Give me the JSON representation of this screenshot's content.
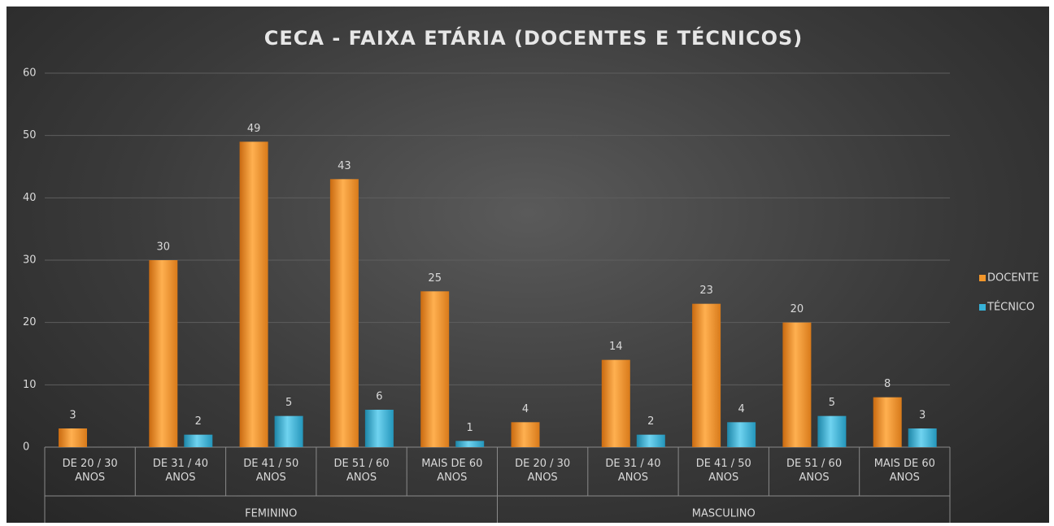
{
  "chart_data": {
    "type": "bar",
    "title": "CECA - FAIXA ETÁRIA (DOCENTES E TÉCNICOS)",
    "categories": [
      "DE 20 / 30 ANOS",
      "DE 31 / 40 ANOS",
      "DE 41 / 50 ANOS",
      "DE 51 / 60 ANOS",
      "MAIS DE 60 ANOS",
      "DE 20 / 30 ANOS",
      "DE 31 / 40 ANOS",
      "DE 41 / 50 ANOS",
      "DE 51 / 60 ANOS",
      "MAIS DE 60 ANOS"
    ],
    "groups": [
      "FEMININO",
      "MASCULINO"
    ],
    "series": [
      {
        "name": "DOCENTE",
        "color": "#f2962a",
        "values": [
          3,
          30,
          49,
          43,
          25,
          4,
          14,
          23,
          20,
          8
        ]
      },
      {
        "name": "TÉCNICO",
        "color": "#37b2d8",
        "values": [
          null,
          2,
          5,
          6,
          1,
          null,
          2,
          4,
          5,
          3
        ]
      }
    ],
    "ylim": [
      0,
      60
    ],
    "yticks": [
      0,
      10,
      20,
      30,
      40,
      50,
      60
    ],
    "grid": true,
    "legend": "right"
  }
}
